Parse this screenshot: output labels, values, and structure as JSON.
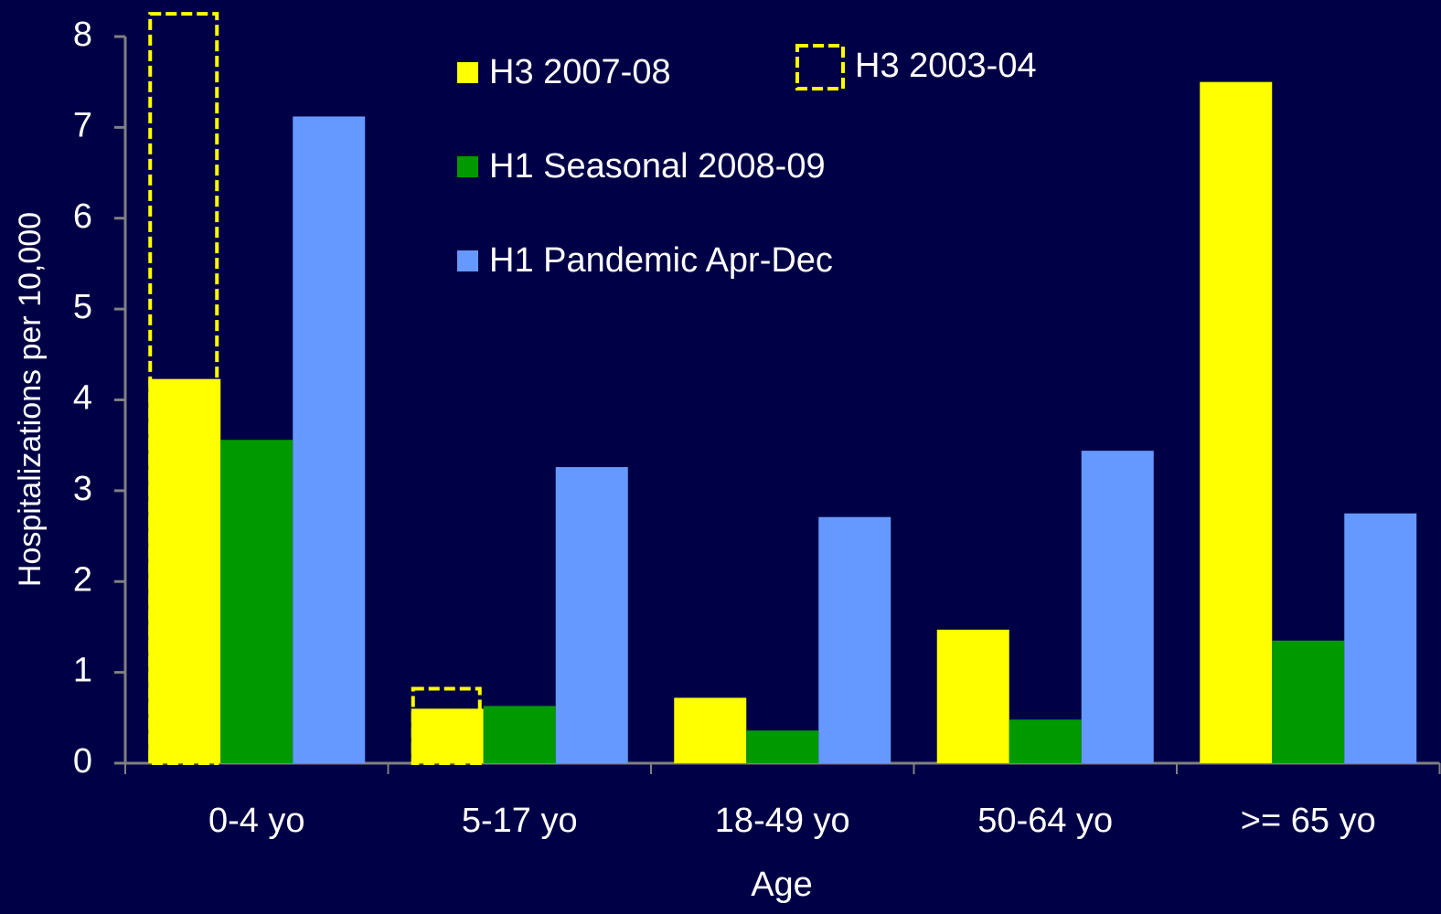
{
  "chart_data": {
    "type": "bar",
    "x_label": "Age",
    "y_label": "Hospitalizations per 10,000",
    "categories": [
      "0-4 yo",
      "5-17 yo",
      "18-49 yo",
      "50-64 yo",
      ">= 65 yo"
    ],
    "series": [
      {
        "name": "H3 2003-04",
        "color": "#ffff00",
        "dashed": true,
        "values": [
          8.25,
          0.82,
          null,
          null,
          null
        ]
      },
      {
        "name": "H3 2007-08",
        "color": "#ffff00",
        "values": [
          4.23,
          0.6,
          0.72,
          1.47,
          7.5
        ]
      },
      {
        "name": "H1 Seasonal 2008-09",
        "color": "#009900",
        "values": [
          3.56,
          0.63,
          0.36,
          0.48,
          1.35
        ]
      },
      {
        "name": "H1 Pandemic Apr-Dec",
        "color": "#6699ff",
        "values": [
          7.12,
          3.26,
          2.71,
          3.44,
          2.75
        ]
      }
    ],
    "ylim": [
      0,
      8
    ],
    "yticks": [
      0,
      1,
      2,
      3,
      4,
      5,
      6,
      7,
      8
    ]
  }
}
